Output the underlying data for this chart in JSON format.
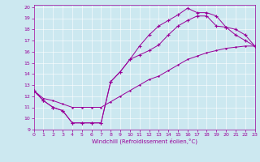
{
  "xlabel": "Windchill (Refroidissement éolien,°C)",
  "bg_color": "#cce8f0",
  "line_color": "#990099",
  "xlim": [
    0,
    23
  ],
  "ylim": [
    9,
    20.2
  ],
  "xticks": [
    0,
    1,
    2,
    3,
    4,
    5,
    6,
    7,
    8,
    9,
    10,
    11,
    12,
    13,
    14,
    15,
    16,
    17,
    18,
    19,
    20,
    21,
    22,
    23
  ],
  "yticks": [
    9,
    10,
    11,
    12,
    13,
    14,
    15,
    16,
    17,
    18,
    19,
    20
  ],
  "line1_x": [
    0,
    1,
    2,
    3,
    4,
    5,
    6,
    7,
    8,
    9,
    10,
    11,
    12,
    13,
    14,
    15,
    16,
    17,
    18,
    19,
    20,
    21,
    22,
    23
  ],
  "line1_y": [
    12.5,
    11.6,
    11.0,
    10.7,
    9.6,
    9.6,
    9.6,
    9.6,
    13.3,
    14.2,
    15.3,
    15.7,
    16.1,
    16.6,
    17.5,
    18.3,
    18.8,
    19.2,
    19.2,
    18.3,
    18.2,
    18.0,
    17.5,
    16.5
  ],
  "line2_x": [
    0,
    1,
    2,
    3,
    4,
    5,
    6,
    7,
    8,
    9,
    10,
    11,
    12,
    13,
    14,
    15,
    16,
    17,
    18,
    19,
    20,
    21,
    22,
    23
  ],
  "line2_y": [
    12.5,
    11.6,
    11.0,
    10.7,
    9.6,
    9.6,
    9.6,
    9.6,
    13.3,
    14.2,
    15.3,
    16.5,
    17.5,
    18.3,
    18.8,
    19.3,
    19.9,
    19.5,
    19.5,
    19.2,
    18.2,
    17.5,
    17.0,
    16.5
  ],
  "line3_x": [
    0,
    1,
    2,
    3,
    4,
    5,
    6,
    7,
    8,
    9,
    10,
    11,
    12,
    13,
    14,
    15,
    16,
    17,
    18,
    19,
    20,
    21,
    22,
    23
  ],
  "line3_y": [
    12.5,
    11.8,
    11.6,
    11.3,
    11.0,
    11.0,
    11.0,
    11.0,
    11.5,
    12.0,
    12.5,
    13.0,
    13.5,
    13.8,
    14.3,
    14.8,
    15.3,
    15.6,
    15.9,
    16.1,
    16.3,
    16.4,
    16.5,
    16.5
  ]
}
